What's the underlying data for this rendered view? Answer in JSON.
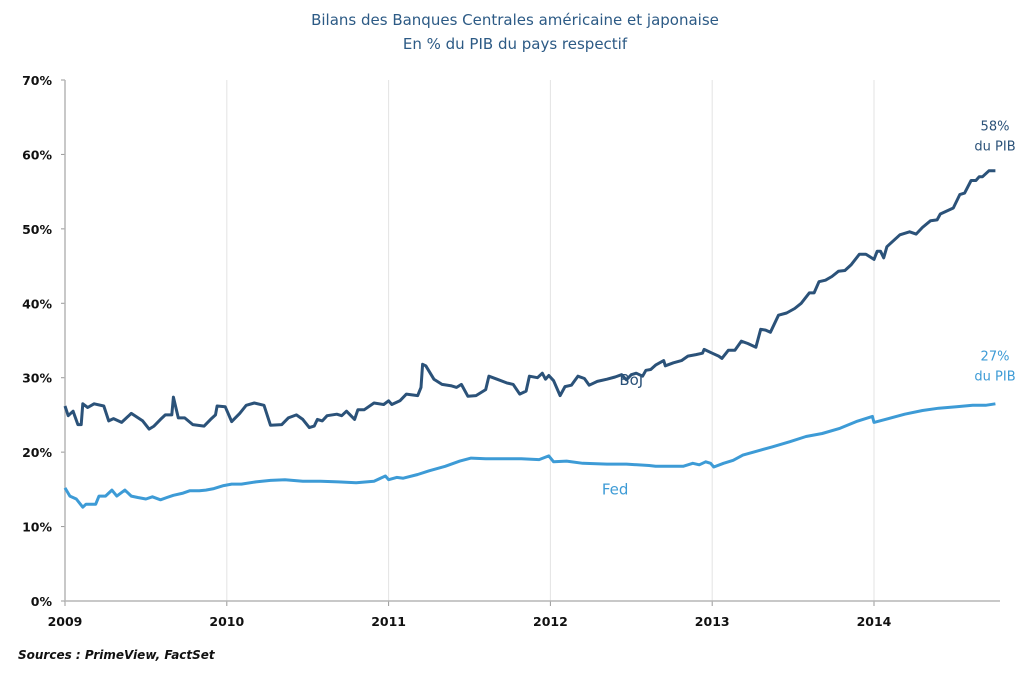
{
  "chart_data": {
    "type": "line",
    "title": "Bilans des Banques Centrales américaine et japonaise",
    "subtitle": "En % du PIB du pays respectif",
    "xlabel": "",
    "ylabel": "",
    "xlim": [
      2009,
      2014.8
    ],
    "ylim": [
      0,
      70
    ],
    "x_ticks": [
      "2009",
      "2010",
      "2011",
      "2012",
      "2013",
      "2014"
    ],
    "y_ticks": [
      "0%",
      "10%",
      "20%",
      "30%",
      "40%",
      "50%",
      "60%",
      "70%"
    ],
    "grid": "vertical",
    "source": "Sources : PrimeView, FactSet",
    "colors": {
      "boj": "#2b5279",
      "fed": "#3d9bd6"
    },
    "series": [
      {
        "name": "BoJ",
        "color": "#2b5279",
        "end_label": [
          "58%",
          "du PIB"
        ],
        "points": [
          [
            2009.0,
            26.2
          ],
          [
            2009.02,
            24.9
          ],
          [
            2009.05,
            25.5
          ],
          [
            2009.08,
            23.7
          ],
          [
            2009.1,
            23.7
          ],
          [
            2009.11,
            26.5
          ],
          [
            2009.14,
            26
          ],
          [
            2009.18,
            26.5
          ],
          [
            2009.24,
            26.2
          ],
          [
            2009.27,
            24.2
          ],
          [
            2009.3,
            24.5
          ],
          [
            2009.35,
            24
          ],
          [
            2009.41,
            25.2
          ],
          [
            2009.48,
            24.2
          ],
          [
            2009.52,
            23.1
          ],
          [
            2009.55,
            23.5
          ],
          [
            2009.59,
            24.4
          ],
          [
            2009.62,
            25
          ],
          [
            2009.66,
            25
          ],
          [
            2009.67,
            27.4
          ],
          [
            2009.7,
            24.6
          ],
          [
            2009.74,
            24.6
          ],
          [
            2009.79,
            23.7
          ],
          [
            2009.86,
            23.5
          ],
          [
            2009.9,
            24.4
          ],
          [
            2009.93,
            25
          ],
          [
            2009.94,
            26.2
          ],
          [
            2009.99,
            26.1
          ],
          [
            2010.03,
            24.1
          ],
          [
            2010.08,
            25.2
          ],
          [
            2010.12,
            26.3
          ],
          [
            2010.17,
            26.6
          ],
          [
            2010.23,
            26.3
          ],
          [
            2010.27,
            23.6
          ],
          [
            2010.34,
            23.7
          ],
          [
            2010.38,
            24.6
          ],
          [
            2010.43,
            25
          ],
          [
            2010.47,
            24.4
          ],
          [
            2010.51,
            23.3
          ],
          [
            2010.54,
            23.5
          ],
          [
            2010.56,
            24.4
          ],
          [
            2010.59,
            24.2
          ],
          [
            2010.62,
            24.9
          ],
          [
            2010.68,
            25.1
          ],
          [
            2010.71,
            24.9
          ],
          [
            2010.74,
            25.5
          ],
          [
            2010.79,
            24.4
          ],
          [
            2010.81,
            25.7
          ],
          [
            2010.85,
            25.7
          ],
          [
            2010.91,
            26.6
          ],
          [
            2010.97,
            26.4
          ],
          [
            2011.0,
            26.9
          ],
          [
            2011.02,
            26.4
          ],
          [
            2011.07,
            26.9
          ],
          [
            2011.11,
            27.8
          ],
          [
            2011.18,
            27.6
          ],
          [
            2011.2,
            28.7
          ],
          [
            2011.21,
            31.8
          ],
          [
            2011.23,
            31.6
          ],
          [
            2011.28,
            29.8
          ],
          [
            2011.33,
            29.1
          ],
          [
            2011.39,
            28.9
          ],
          [
            2011.42,
            28.7
          ],
          [
            2011.45,
            29.1
          ],
          [
            2011.49,
            27.5
          ],
          [
            2011.54,
            27.6
          ],
          [
            2011.6,
            28.4
          ],
          [
            2011.62,
            30.2
          ],
          [
            2011.67,
            29.8
          ],
          [
            2011.73,
            29.3
          ],
          [
            2011.77,
            29.1
          ],
          [
            2011.81,
            27.8
          ],
          [
            2011.85,
            28.2
          ],
          [
            2011.87,
            30.2
          ],
          [
            2011.92,
            30
          ],
          [
            2011.95,
            30.6
          ],
          [
            2011.97,
            29.8
          ],
          [
            2011.99,
            30.3
          ],
          [
            2012.02,
            29.6
          ],
          [
            2012.06,
            27.6
          ],
          [
            2012.09,
            28.8
          ],
          [
            2012.13,
            29.0
          ],
          [
            2012.17,
            30.2
          ],
          [
            2012.21,
            29.9
          ],
          [
            2012.24,
            29.0
          ],
          [
            2012.29,
            29.5
          ],
          [
            2012.35,
            29.8
          ],
          [
            2012.4,
            30.1
          ],
          [
            2012.44,
            30.4
          ],
          [
            2012.47,
            29.7
          ],
          [
            2012.5,
            30.4
          ],
          [
            2012.53,
            30.6
          ],
          [
            2012.57,
            30.2
          ],
          [
            2012.59,
            31
          ],
          [
            2012.62,
            31.1
          ],
          [
            2012.65,
            31.7
          ],
          [
            2012.7,
            32.3
          ],
          [
            2012.71,
            31.6
          ],
          [
            2012.76,
            32
          ],
          [
            2012.81,
            32.3
          ],
          [
            2012.85,
            32.9
          ],
          [
            2012.9,
            33.1
          ],
          [
            2012.94,
            33.3
          ],
          [
            2012.95,
            33.8
          ],
          [
            2013.0,
            33.3
          ],
          [
            2013.04,
            32.9
          ],
          [
            2013.06,
            32.6
          ],
          [
            2013.1,
            33.7
          ],
          [
            2013.14,
            33.7
          ],
          [
            2013.18,
            34.9
          ],
          [
            2013.22,
            34.6
          ],
          [
            2013.27,
            34.1
          ],
          [
            2013.3,
            36.5
          ],
          [
            2013.33,
            36.4
          ],
          [
            2013.36,
            36.1
          ],
          [
            2013.41,
            38.4
          ],
          [
            2013.46,
            38.7
          ],
          [
            2013.51,
            39.3
          ],
          [
            2013.55,
            40
          ],
          [
            2013.6,
            41.4
          ],
          [
            2013.63,
            41.4
          ],
          [
            2013.66,
            42.9
          ],
          [
            2013.7,
            43.1
          ],
          [
            2013.74,
            43.6
          ],
          [
            2013.78,
            44.3
          ],
          [
            2013.82,
            44.4
          ],
          [
            2013.86,
            45.2
          ],
          [
            2013.91,
            46.6
          ],
          [
            2013.95,
            46.6
          ],
          [
            2014.0,
            45.9
          ],
          [
            2014.02,
            47
          ],
          [
            2014.04,
            47
          ],
          [
            2014.06,
            46.1
          ],
          [
            2014.08,
            47.6
          ],
          [
            2014.16,
            49.2
          ],
          [
            2014.22,
            49.6
          ],
          [
            2014.26,
            49.3
          ],
          [
            2014.3,
            50.2
          ],
          [
            2014.35,
            51.1
          ],
          [
            2014.39,
            51.2
          ],
          [
            2014.41,
            52.0
          ],
          [
            2014.49,
            52.8
          ],
          [
            2014.53,
            54.6
          ],
          [
            2014.56,
            54.8
          ],
          [
            2014.6,
            56.5
          ],
          [
            2014.63,
            56.5
          ],
          [
            2014.65,
            57.0
          ],
          [
            2014.67,
            57
          ],
          [
            2014.71,
            57.8
          ],
          [
            2014.75,
            57.8
          ]
        ]
      },
      {
        "name": "Fed",
        "color": "#3d9bd6",
        "end_label": [
          "27%",
          "du PIB"
        ],
        "points": [
          [
            2009.0,
            15.2
          ],
          [
            2009.03,
            14.1
          ],
          [
            2009.07,
            13.7
          ],
          [
            2009.11,
            12.6
          ],
          [
            2009.13,
            13.0
          ],
          [
            2009.19,
            13.0
          ],
          [
            2009.21,
            14.1
          ],
          [
            2009.25,
            14.1
          ],
          [
            2009.29,
            14.9
          ],
          [
            2009.32,
            14.1
          ],
          [
            2009.37,
            14.9
          ],
          [
            2009.41,
            14.1
          ],
          [
            2009.45,
            13.9
          ],
          [
            2009.5,
            13.7
          ],
          [
            2009.54,
            14.0
          ],
          [
            2009.59,
            13.6
          ],
          [
            2009.63,
            13.9
          ],
          [
            2009.67,
            14.2
          ],
          [
            2009.73,
            14.5
          ],
          [
            2009.77,
            14.8
          ],
          [
            2009.83,
            14.8
          ],
          [
            2009.87,
            14.9
          ],
          [
            2009.92,
            15.1
          ],
          [
            2009.98,
            15.5
          ],
          [
            2010.03,
            15.7
          ],
          [
            2010.09,
            15.7
          ],
          [
            2010.18,
            16.0
          ],
          [
            2010.27,
            16.2
          ],
          [
            2010.36,
            16.3
          ],
          [
            2010.47,
            16.1
          ],
          [
            2010.58,
            16.1
          ],
          [
            2010.69,
            16.0
          ],
          [
            2010.8,
            15.9
          ],
          [
            2010.91,
            16.1
          ],
          [
            2010.98,
            16.8
          ],
          [
            2011.0,
            16.3
          ],
          [
            2011.05,
            16.6
          ],
          [
            2011.09,
            16.5
          ],
          [
            2011.18,
            17.0
          ],
          [
            2011.25,
            17.5
          ],
          [
            2011.35,
            18.1
          ],
          [
            2011.44,
            18.8
          ],
          [
            2011.51,
            19.2
          ],
          [
            2011.6,
            19.1
          ],
          [
            2011.71,
            19.1
          ],
          [
            2011.82,
            19.1
          ],
          [
            2011.93,
            19.0
          ],
          [
            2011.99,
            19.5
          ],
          [
            2012.02,
            18.7
          ],
          [
            2012.1,
            18.8
          ],
          [
            2012.2,
            18.5
          ],
          [
            2012.35,
            18.4
          ],
          [
            2012.47,
            18.4
          ],
          [
            2012.61,
            18.2
          ],
          [
            2012.65,
            18.1
          ],
          [
            2012.76,
            18.1
          ],
          [
            2012.82,
            18.1
          ],
          [
            2012.88,
            18.5
          ],
          [
            2012.92,
            18.3
          ],
          [
            2012.96,
            18.7
          ],
          [
            2012.99,
            18.5
          ],
          [
            2013.01,
            18.0
          ],
          [
            2013.07,
            18.5
          ],
          [
            2013.13,
            18.9
          ],
          [
            2013.19,
            19.6
          ],
          [
            2013.27,
            20.1
          ],
          [
            2013.37,
            20.7
          ],
          [
            2013.48,
            21.4
          ],
          [
            2013.58,
            22.1
          ],
          [
            2013.68,
            22.5
          ],
          [
            2013.79,
            23.2
          ],
          [
            2013.89,
            24.1
          ],
          [
            2013.99,
            24.8
          ],
          [
            2014.0,
            24.0
          ],
          [
            2014.07,
            24.4
          ],
          [
            2014.19,
            25.1
          ],
          [
            2014.3,
            25.6
          ],
          [
            2014.4,
            25.9
          ],
          [
            2014.51,
            26.1
          ],
          [
            2014.61,
            26.3
          ],
          [
            2014.69,
            26.3
          ],
          [
            2014.75,
            26.5
          ]
        ]
      }
    ]
  }
}
